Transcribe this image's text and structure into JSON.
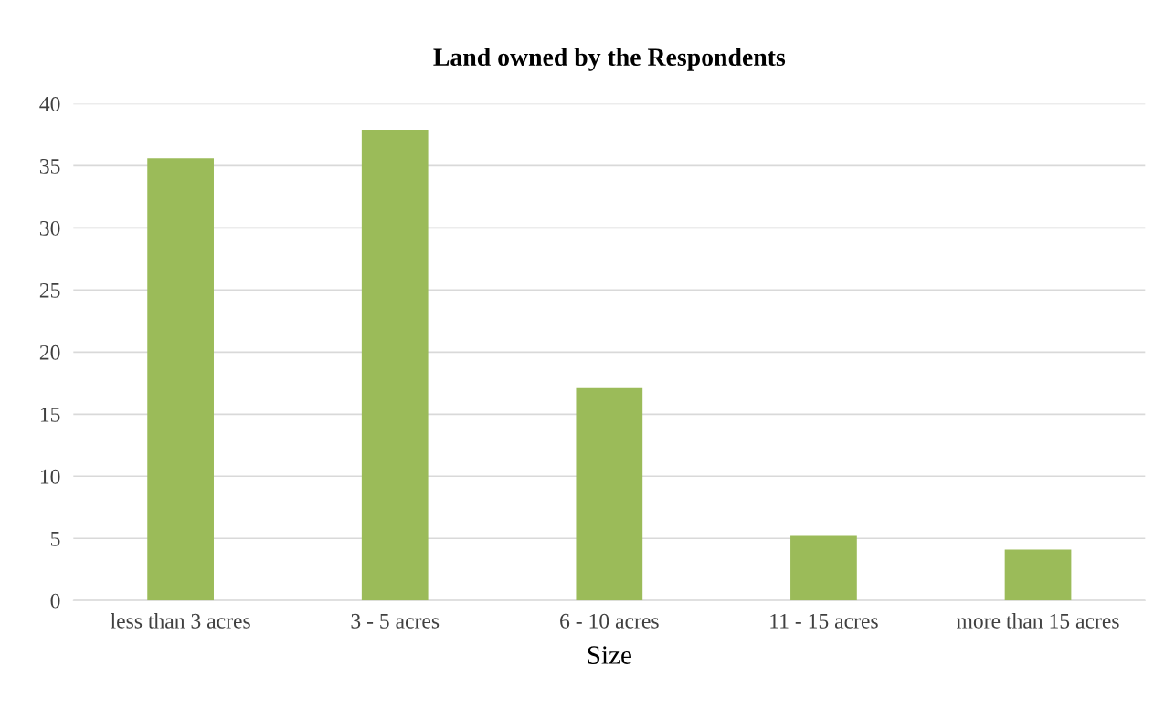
{
  "chart_data": {
    "type": "bar",
    "title": "Land owned by the Respondents",
    "xlabel": "Size",
    "categories": [
      "less than 3 acres",
      "3 - 5 acres",
      "6 - 10 acres",
      "11 - 15 acres",
      "more than 15 acres"
    ],
    "values": [
      35.6,
      37.9,
      17.1,
      5.2,
      4.1
    ],
    "color": "#9bbb59",
    "ylim": [
      0,
      40
    ],
    "yticks": [
      0,
      5,
      10,
      15,
      20,
      25,
      30,
      35,
      40
    ],
    "grid": "y"
  }
}
